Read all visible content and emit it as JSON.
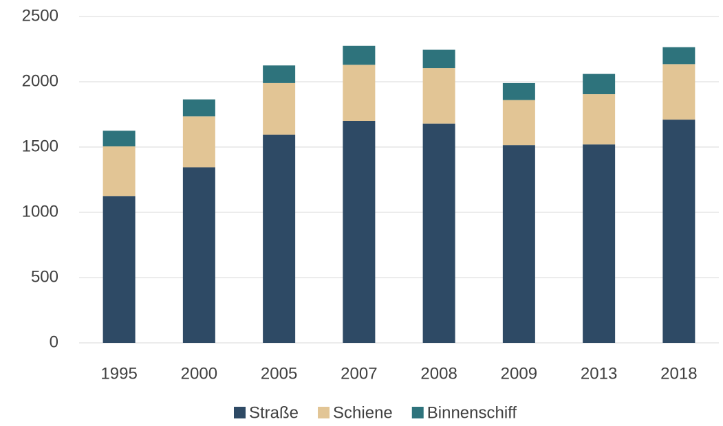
{
  "chart_data": {
    "type": "stacked_bar",
    "categories": [
      "1995",
      "2000",
      "2005",
      "2007",
      "2008",
      "2009",
      "2013",
      "2018"
    ],
    "series": [
      {
        "name": "Straße",
        "color": "#2e4a65",
        "values": [
          1125,
          1345,
          1595,
          1700,
          1680,
          1515,
          1520,
          1710
        ]
      },
      {
        "name": "Schiene",
        "color": "#e2c595",
        "values": [
          380,
          390,
          395,
          430,
          425,
          345,
          385,
          425
        ]
      },
      {
        "name": "Binnenschiff",
        "color": "#2e737c",
        "values": [
          120,
          130,
          135,
          145,
          140,
          130,
          155,
          130
        ]
      }
    ],
    "ylim": [
      0,
      2500
    ],
    "yticks": [
      0,
      500,
      1000,
      1500,
      2000,
      2500
    ],
    "grid": true,
    "legend": "bottom"
  }
}
